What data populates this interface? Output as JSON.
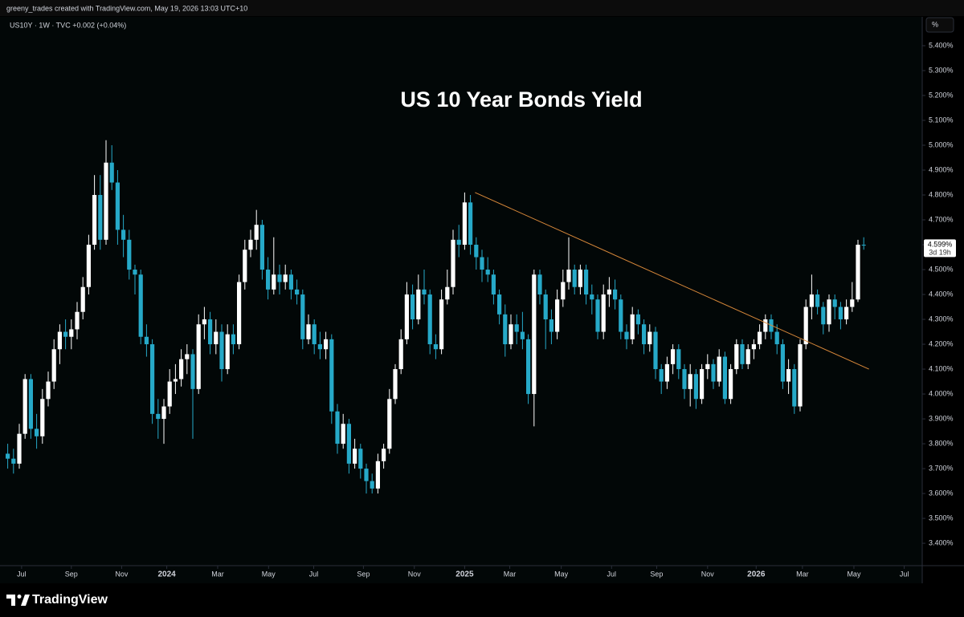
{
  "header": {
    "attribution": "greeny_trades created with TradingView.com, May 19, 2026 13:03 UTC+10",
    "symbol": "US10Y · 1W · TVC  +0.002 (+0.04%)",
    "unit_button": "%"
  },
  "footer": {
    "brand": "TradingView"
  },
  "chart_data": {
    "type": "candlestick",
    "title": "US 10 Year Bonds Yield",
    "up_color": "#ffffff",
    "down_color": "#26a9c8",
    "grid": false,
    "xlim": [
      -0.5,
      157
    ],
    "ylim": [
      3.31,
      5.516
    ],
    "xticks": [
      {
        "value": 2.4,
        "label": "Jul"
      },
      {
        "value": 11,
        "label": "Sep"
      },
      {
        "value": 19.7,
        "label": "Nov"
      },
      {
        "value": 27.5,
        "label": "2024"
      },
      {
        "value": 36.3,
        "label": "Mar"
      },
      {
        "value": 45.1,
        "label": "May"
      },
      {
        "value": 52.9,
        "label": "Jul"
      },
      {
        "value": 61.5,
        "label": "Sep"
      },
      {
        "value": 70.3,
        "label": "Nov"
      },
      {
        "value": 79,
        "label": "2025"
      },
      {
        "value": 86.8,
        "label": "Mar"
      },
      {
        "value": 95.7,
        "label": "May"
      },
      {
        "value": 104.4,
        "label": "Jul"
      },
      {
        "value": 112.2,
        "label": "Sep"
      },
      {
        "value": 121,
        "label": "Nov"
      },
      {
        "value": 129.4,
        "label": "2026"
      },
      {
        "value": 137.4,
        "label": "Mar"
      },
      {
        "value": 146.3,
        "label": "May"
      },
      {
        "value": 155,
        "label": "Jul"
      }
    ],
    "yticks": [
      {
        "value": 3.4,
        "label": "3.400%"
      },
      {
        "value": 3.5,
        "label": "3.500%"
      },
      {
        "value": 3.6,
        "label": "3.600%"
      },
      {
        "value": 3.7,
        "label": "3.700%"
      },
      {
        "value": 3.8,
        "label": "3.800%"
      },
      {
        "value": 3.9,
        "label": "3.900%"
      },
      {
        "value": 4.0,
        "label": "4.000%"
      },
      {
        "value": 4.1,
        "label": "4.100%"
      },
      {
        "value": 4.2,
        "label": "4.200%"
      },
      {
        "value": 4.3,
        "label": "4.300%"
      },
      {
        "value": 4.4,
        "label": "4.400%"
      },
      {
        "value": 4.5,
        "label": "4.500%"
      },
      {
        "value": 4.6,
        "label": "4.600%"
      },
      {
        "value": 4.7,
        "label": "4.700%"
      },
      {
        "value": 4.8,
        "label": "4.800%"
      },
      {
        "value": 4.9,
        "label": "4.900%"
      },
      {
        "value": 5.0,
        "label": "5.000%"
      },
      {
        "value": 5.1,
        "label": "5.100%"
      },
      {
        "value": 5.2,
        "label": "5.200%"
      },
      {
        "value": 5.3,
        "label": "5.300%"
      },
      {
        "value": 5.4,
        "label": "5.400%"
      }
    ],
    "last_label": "4.599%",
    "countdown": "3d 19h",
    "trendline": {
      "x": [
        80.8,
        148.9
      ],
      "y": [
        4.81,
        4.1
      ],
      "color": "#d9893a"
    },
    "ohlc": [
      [
        3.76,
        3.8,
        3.7,
        3.74
      ],
      [
        3.74,
        3.78,
        3.68,
        3.72
      ],
      [
        3.72,
        3.88,
        3.7,
        3.84
      ],
      [
        3.84,
        4.08,
        3.82,
        4.06
      ],
      [
        4.06,
        4.08,
        3.82,
        3.86
      ],
      [
        3.86,
        3.92,
        3.78,
        3.83
      ],
      [
        3.83,
        4.02,
        3.8,
        3.98
      ],
      [
        3.98,
        4.09,
        3.95,
        4.05
      ],
      [
        4.05,
        4.22,
        4.02,
        4.18
      ],
      [
        4.18,
        4.28,
        4.12,
        4.25
      ],
      [
        4.25,
        4.3,
        4.18,
        4.23
      ],
      [
        4.23,
        4.3,
        4.18,
        4.26
      ],
      [
        4.26,
        4.37,
        4.22,
        4.33
      ],
      [
        4.33,
        4.47,
        4.3,
        4.43
      ],
      [
        4.43,
        4.64,
        4.4,
        4.6
      ],
      [
        4.6,
        4.88,
        4.58,
        4.8
      ],
      [
        4.8,
        4.88,
        4.58,
        4.62
      ],
      [
        4.62,
        5.02,
        4.6,
        4.93
      ],
      [
        4.93,
        5.0,
        4.82,
        4.85
      ],
      [
        4.85,
        4.9,
        4.6,
        4.66
      ],
      [
        4.66,
        4.72,
        4.55,
        4.62
      ],
      [
        4.62,
        4.66,
        4.46,
        4.5
      ],
      [
        4.5,
        4.52,
        4.4,
        4.48
      ],
      [
        4.48,
        4.5,
        4.2,
        4.23
      ],
      [
        4.23,
        4.28,
        4.15,
        4.2
      ],
      [
        4.2,
        4.22,
        3.88,
        3.92
      ],
      [
        3.92,
        3.98,
        3.82,
        3.9
      ],
      [
        3.9,
        3.98,
        3.8,
        3.95
      ],
      [
        3.95,
        4.1,
        3.92,
        4.05
      ],
      [
        4.05,
        4.12,
        4.0,
        4.06
      ],
      [
        4.06,
        4.18,
        4.03,
        4.14
      ],
      [
        4.14,
        4.2,
        4.08,
        4.16
      ],
      [
        4.16,
        4.18,
        3.82,
        4.02
      ],
      [
        4.02,
        4.32,
        4.0,
        4.28
      ],
      [
        4.28,
        4.35,
        4.22,
        4.3
      ],
      [
        4.3,
        4.33,
        4.16,
        4.2
      ],
      [
        4.2,
        4.3,
        4.16,
        4.25
      ],
      [
        4.25,
        4.28,
        4.05,
        4.1
      ],
      [
        4.1,
        4.28,
        4.08,
        4.24
      ],
      [
        4.24,
        4.28,
        4.16,
        4.2
      ],
      [
        4.2,
        4.48,
        4.18,
        4.45
      ],
      [
        4.45,
        4.62,
        4.42,
        4.58
      ],
      [
        4.58,
        4.66,
        4.55,
        4.62
      ],
      [
        4.62,
        4.74,
        4.58,
        4.68
      ],
      [
        4.68,
        4.7,
        4.46,
        4.5
      ],
      [
        4.5,
        4.55,
        4.38,
        4.42
      ],
      [
        4.42,
        4.63,
        4.4,
        4.48
      ],
      [
        4.48,
        4.52,
        4.4,
        4.45
      ],
      [
        4.45,
        4.52,
        4.42,
        4.48
      ],
      [
        4.48,
        4.5,
        4.38,
        4.42
      ],
      [
        4.42,
        4.46,
        4.36,
        4.4
      ],
      [
        4.4,
        4.42,
        4.18,
        4.22
      ],
      [
        4.22,
        4.32,
        4.2,
        4.28
      ],
      [
        4.28,
        4.3,
        4.16,
        4.2
      ],
      [
        4.2,
        4.25,
        4.14,
        4.18
      ],
      [
        4.18,
        4.25,
        4.14,
        4.22
      ],
      [
        4.22,
        4.24,
        3.88,
        3.93
      ],
      [
        3.93,
        3.96,
        3.76,
        3.8
      ],
      [
        3.8,
        3.92,
        3.78,
        3.88
      ],
      [
        3.88,
        3.9,
        3.68,
        3.72
      ],
      [
        3.72,
        3.82,
        3.7,
        3.78
      ],
      [
        3.78,
        3.8,
        3.66,
        3.7
      ],
      [
        3.7,
        3.72,
        3.6,
        3.65
      ],
      [
        3.65,
        3.68,
        3.6,
        3.62
      ],
      [
        3.62,
        3.76,
        3.6,
        3.73
      ],
      [
        3.73,
        3.8,
        3.7,
        3.78
      ],
      [
        3.78,
        4.02,
        3.76,
        3.98
      ],
      [
        3.98,
        4.12,
        3.96,
        4.1
      ],
      [
        4.1,
        4.26,
        4.08,
        4.22
      ],
      [
        4.22,
        4.45,
        4.2,
        4.4
      ],
      [
        4.4,
        4.44,
        4.26,
        4.3
      ],
      [
        4.3,
        4.48,
        4.28,
        4.42
      ],
      [
        4.42,
        4.5,
        4.36,
        4.4
      ],
      [
        4.4,
        4.42,
        4.16,
        4.2
      ],
      [
        4.2,
        4.24,
        4.14,
        4.18
      ],
      [
        4.18,
        4.42,
        4.16,
        4.38
      ],
      [
        4.38,
        4.5,
        4.36,
        4.43
      ],
      [
        4.43,
        4.66,
        4.4,
        4.62
      ],
      [
        4.62,
        4.68,
        4.55,
        4.6
      ],
      [
        4.6,
        4.81,
        4.58,
        4.77
      ],
      [
        4.77,
        4.8,
        4.56,
        4.6
      ],
      [
        4.6,
        4.63,
        4.5,
        4.55
      ],
      [
        4.55,
        4.58,
        4.45,
        4.5
      ],
      [
        4.5,
        4.55,
        4.45,
        4.48
      ],
      [
        4.48,
        4.5,
        4.36,
        4.4
      ],
      [
        4.4,
        4.42,
        4.28,
        4.32
      ],
      [
        4.32,
        4.36,
        4.15,
        4.2
      ],
      [
        4.2,
        4.32,
        4.18,
        4.28
      ],
      [
        4.28,
        4.32,
        4.2,
        4.25
      ],
      [
        4.25,
        4.33,
        4.18,
        4.22
      ],
      [
        4.22,
        4.24,
        3.96,
        4.0
      ],
      [
        4.0,
        4.5,
        3.87,
        4.48
      ],
      [
        4.48,
        4.5,
        4.36,
        4.4
      ],
      [
        4.4,
        4.42,
        4.18,
        4.3
      ],
      [
        4.3,
        4.34,
        4.2,
        4.25
      ],
      [
        4.25,
        4.42,
        4.22,
        4.38
      ],
      [
        4.38,
        4.5,
        4.35,
        4.45
      ],
      [
        4.45,
        4.63,
        4.42,
        4.5
      ],
      [
        4.5,
        4.52,
        4.4,
        4.43
      ],
      [
        4.43,
        4.52,
        4.4,
        4.5
      ],
      [
        4.5,
        4.52,
        4.36,
        4.4
      ],
      [
        4.4,
        4.44,
        4.32,
        4.38
      ],
      [
        4.38,
        4.4,
        4.22,
        4.25
      ],
      [
        4.25,
        4.44,
        4.22,
        4.4
      ],
      [
        4.4,
        4.47,
        4.35,
        4.42
      ],
      [
        4.42,
        4.46,
        4.34,
        4.38
      ],
      [
        4.38,
        4.4,
        4.22,
        4.25
      ],
      [
        4.25,
        4.28,
        4.18,
        4.22
      ],
      [
        4.22,
        4.35,
        4.2,
        4.32
      ],
      [
        4.32,
        4.34,
        4.24,
        4.28
      ],
      [
        4.28,
        4.3,
        4.16,
        4.2
      ],
      [
        4.2,
        4.28,
        4.17,
        4.25
      ],
      [
        4.25,
        4.27,
        4.06,
        4.1
      ],
      [
        4.1,
        4.12,
        4.0,
        4.05
      ],
      [
        4.05,
        4.15,
        4.02,
        4.12
      ],
      [
        4.12,
        4.2,
        4.08,
        4.18
      ],
      [
        4.18,
        4.2,
        4.06,
        4.1
      ],
      [
        4.1,
        4.12,
        3.98,
        4.02
      ],
      [
        4.02,
        4.12,
        3.95,
        4.08
      ],
      [
        4.08,
        4.1,
        3.94,
        3.98
      ],
      [
        3.98,
        4.12,
        3.96,
        4.1
      ],
      [
        4.1,
        4.16,
        4.06,
        4.12
      ],
      [
        4.12,
        4.14,
        4.02,
        4.05
      ],
      [
        4.05,
        4.18,
        4.03,
        4.15
      ],
      [
        4.15,
        4.17,
        3.96,
        3.98
      ],
      [
        3.98,
        4.12,
        3.96,
        4.1
      ],
      [
        4.1,
        4.22,
        4.08,
        4.2
      ],
      [
        4.2,
        4.22,
        4.1,
        4.12
      ],
      [
        4.12,
        4.2,
        4.1,
        4.18
      ],
      [
        4.18,
        4.22,
        4.14,
        4.2
      ],
      [
        4.2,
        4.28,
        4.18,
        4.25
      ],
      [
        4.25,
        4.32,
        4.22,
        4.3
      ],
      [
        4.3,
        4.32,
        4.22,
        4.25
      ],
      [
        4.25,
        4.28,
        4.16,
        4.2
      ],
      [
        4.2,
        4.22,
        4.02,
        4.05
      ],
      [
        4.05,
        4.14,
        4.0,
        4.1
      ],
      [
        4.1,
        4.12,
        3.92,
        3.95
      ],
      [
        3.95,
        4.22,
        3.93,
        4.2
      ],
      [
        4.2,
        4.38,
        4.18,
        4.35
      ],
      [
        4.35,
        4.48,
        4.3,
        4.4
      ],
      [
        4.4,
        4.42,
        4.32,
        4.35
      ],
      [
        4.35,
        4.37,
        4.24,
        4.28
      ],
      [
        4.28,
        4.4,
        4.25,
        4.38
      ],
      [
        4.38,
        4.4,
        4.3,
        4.35
      ],
      [
        4.35,
        4.37,
        4.26,
        4.3
      ],
      [
        4.3,
        4.38,
        4.28,
        4.35
      ],
      [
        4.35,
        4.45,
        4.33,
        4.38
      ],
      [
        4.38,
        4.62,
        4.37,
        4.6
      ],
      [
        4.6,
        4.63,
        4.58,
        4.599
      ]
    ]
  }
}
